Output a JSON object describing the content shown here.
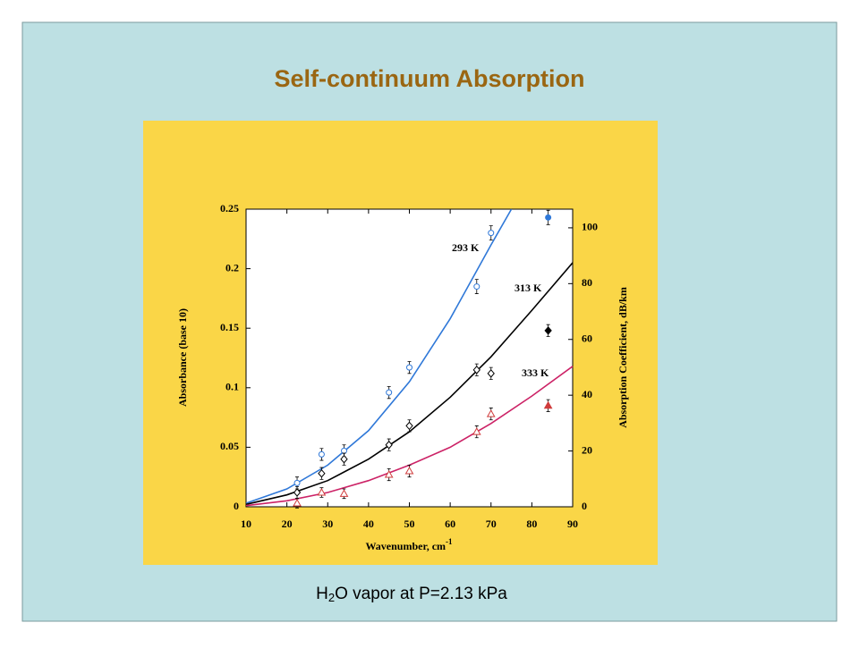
{
  "chart_data": {
    "type": "scatter",
    "title": "Self-continuum Absorption",
    "caption": [
      "H",
      "2",
      "O vapor at P=2.13 kPa"
    ],
    "xlabel": [
      "Wavenumber, cm",
      "-1"
    ],
    "ylabel": "Absorbance (base 10)",
    "y2label": "Absorption Coefficient, dB/km",
    "xlim": [
      10,
      90
    ],
    "xticks": [
      10,
      20,
      30,
      40,
      50,
      60,
      70,
      80,
      90
    ],
    "ylim": [
      0,
      0.25
    ],
    "yticks": [
      0,
      0.05,
      0.1,
      0.15,
      0.2,
      0.25
    ],
    "y2lim": [
      0,
      106.7
    ],
    "y2ticks": [
      0,
      20,
      40,
      60,
      80,
      100
    ],
    "filled_last": true,
    "series": [
      {
        "name": "293 K",
        "color": "#2f78d8",
        "marker": "circle",
        "x": [
          22.5,
          28.5,
          34,
          45,
          50,
          66.5,
          70,
          84
        ],
        "values": [
          0.02,
          0.044,
          0.047,
          0.096,
          0.117,
          0.185,
          0.23,
          0.243
        ],
        "errors": [
          0.005,
          0.005,
          0.005,
          0.005,
          0.005,
          0.006,
          0.006,
          0.006
        ]
      },
      {
        "name": "313 K",
        "color": "#000000",
        "marker": "diamond",
        "x": [
          22.5,
          28.5,
          34,
          45,
          50,
          66.5,
          70,
          84
        ],
        "values": [
          0.012,
          0.028,
          0.04,
          0.052,
          0.068,
          0.115,
          0.112,
          0.148
        ],
        "errors": [
          0.005,
          0.005,
          0.005,
          0.005,
          0.005,
          0.005,
          0.005,
          0.005
        ]
      },
      {
        "name": "333 K",
        "color": "#d03c3c",
        "marker": "triangle",
        "x": [
          22.5,
          28.5,
          34,
          45,
          50,
          66.5,
          70,
          84
        ],
        "values": [
          0.003,
          0.012,
          0.011,
          0.027,
          0.03,
          0.063,
          0.078,
          0.085
        ],
        "errors": [
          0.004,
          0.004,
          0.004,
          0.005,
          0.005,
          0.005,
          0.005,
          0.005
        ]
      }
    ],
    "fits": [
      {
        "color": "#2f78d8",
        "x": [
          10,
          20,
          30,
          40,
          50,
          60,
          70,
          75
        ],
        "values": [
          0.003,
          0.015,
          0.035,
          0.064,
          0.105,
          0.158,
          0.22,
          0.25
        ]
      },
      {
        "color": "#000000",
        "x": [
          10,
          20,
          30,
          40,
          50,
          60,
          70,
          80,
          90
        ],
        "values": [
          0.002,
          0.01,
          0.022,
          0.04,
          0.063,
          0.092,
          0.126,
          0.165,
          0.205
        ]
      },
      {
        "color": "#cc2266",
        "x": [
          10,
          20,
          30,
          40,
          50,
          60,
          70,
          80,
          90
        ],
        "values": [
          0.001,
          0.005,
          0.012,
          0.022,
          0.035,
          0.05,
          0.07,
          0.093,
          0.118
        ]
      }
    ]
  }
}
